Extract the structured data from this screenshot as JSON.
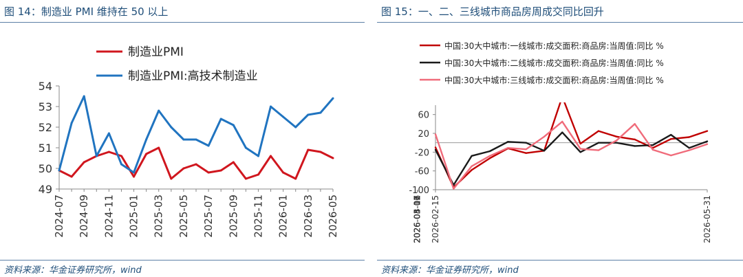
{
  "left": {
    "title": "图 14：制造业 PMI 维持在 50 以上",
    "source": "资料来源：华金证券研究所，wind",
    "chart_data": {
      "type": "line",
      "title": "",
      "xlabel": "",
      "ylabel": "",
      "ylim": [
        49,
        54
      ],
      "yticks": [
        49,
        50,
        51,
        52,
        53,
        54
      ],
      "grid": false,
      "legend_position": "top",
      "x": [
        "2024-07",
        "2024-08",
        "2024-09",
        "2024-10",
        "2024-11",
        "2024-12",
        "2025-01",
        "2025-02",
        "2025-03",
        "2025-04",
        "2025-05",
        "2025-06",
        "2025-07",
        "2025-08",
        "2025-09",
        "2025-10",
        "2025-11",
        "2025-12",
        "2026-01",
        "2026-02",
        "2026-03",
        "2026-04",
        "2026-05"
      ],
      "xtick_labels": [
        "2024-07",
        "2024-09",
        "2024-11",
        "2025-01",
        "2025-03",
        "2025-05",
        "2025-07",
        "2025-09",
        "2025-11",
        "2026-01",
        "2026-03",
        "2026-05"
      ],
      "series": [
        {
          "name": "制造业PMI",
          "color": "#d0161e",
          "values": [
            49.9,
            49.6,
            50.3,
            50.6,
            50.8,
            50.6,
            49.6,
            50.7,
            51.0,
            49.5,
            50.0,
            50.2,
            49.8,
            49.9,
            50.3,
            49.5,
            49.7,
            50.6,
            49.8,
            49.5,
            50.9,
            50.8,
            50.5
          ]
        },
        {
          "name": "制造业PMI:高技术制造业",
          "color": "#2074c0",
          "values": [
            49.9,
            52.2,
            53.5,
            50.6,
            51.7,
            50.2,
            49.8,
            51.4,
            52.8,
            52.0,
            51.4,
            51.4,
            51.1,
            52.4,
            52.1,
            51.0,
            50.6,
            53.0,
            52.5,
            52.0,
            52.6,
            52.7,
            53.4
          ]
        }
      ]
    }
  },
  "right": {
    "title": "图 15：一、二、三线城市商品房周成交同比回升",
    "source": "资料来源：华金证券研究所，wind",
    "chart_data": {
      "type": "line",
      "title": "",
      "xlabel": "",
      "ylabel": "",
      "ylim": [
        -100,
        80
      ],
      "yticks": [
        -100,
        -60,
        -20,
        20,
        60
      ],
      "ytick_labels": [
        "-100",
        "-60",
        "-20",
        "20",
        "60"
      ],
      "grid": false,
      "legend_position": "top",
      "x": [
        "2026-02-15",
        "2026-02-22",
        "2026-03-01",
        "2026-03-08",
        "2026-03-15",
        "2026-03-22",
        "2026-03-29",
        "2026-04-05",
        "2026-04-12",
        "2026-04-19",
        "2026-04-26",
        "2026-05-03",
        "2026-05-10",
        "2026-05-17",
        "2026-05-24",
        "2026-05-31"
      ],
      "xtick_labels": [
        "2026-02-15",
        "2026-03-02",
        "2026-03-17",
        "2026-04-01",
        "2026-04-16",
        "2026-05-01",
        "2026-05-16",
        "2026-05-31"
      ],
      "series": [
        {
          "name": "中国:30大中城市:一线城市:成交面积:商品房:当周值:同比 %",
          "color": "#c00000",
          "values": [
            -10,
            -95,
            -58,
            -33,
            -12,
            -22,
            -17,
            98,
            -2,
            25,
            13,
            7,
            -11,
            8,
            12,
            25
          ]
        },
        {
          "name": "中国:30大中城市:二线城市:成交面积:商品房:当周值:同比 %",
          "color": "#1a1a1a",
          "values": [
            -15,
            -90,
            -28,
            -18,
            2,
            0,
            -17,
            22,
            -20,
            0,
            0,
            -7,
            -5,
            17,
            -11,
            3
          ]
        },
        {
          "name": "中国:30大中城市:三线城市:成交面积:商品房:当周值:同比 %",
          "color": "#f06b7a",
          "values": [
            18,
            -98,
            -50,
            -28,
            -11,
            -14,
            13,
            45,
            -13,
            -16,
            5,
            40,
            -15,
            -27,
            -16,
            -3
          ]
        }
      ]
    }
  }
}
